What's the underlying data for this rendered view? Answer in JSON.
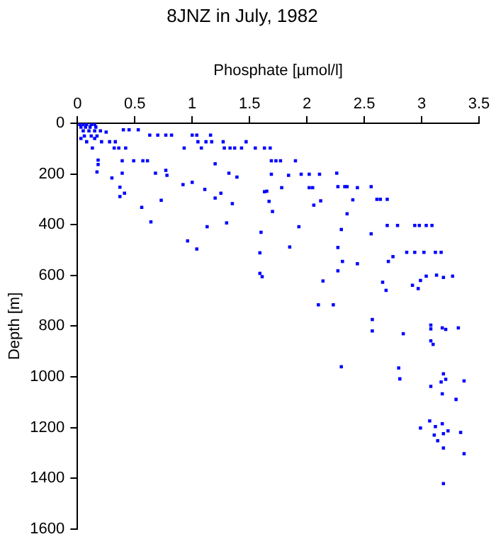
{
  "chart_data": {
    "type": "scatter",
    "title": "8JNZ in July, 1982",
    "xlabel": "Phosphate [µmol/l]",
    "ylabel": "Depth [m]",
    "xlim": [
      0,
      3.5
    ],
    "xticks": [
      0,
      0.5,
      1,
      1.5,
      2,
      2.5,
      3,
      3.5
    ],
    "ylim": [
      1600,
      0
    ],
    "yticks": [
      0,
      200,
      400,
      600,
      800,
      1000,
      1200,
      1400,
      1600
    ],
    "grid": false,
    "marker": "square",
    "series": [
      {
        "color": "#0000ff",
        "x": [
          0.02,
          0.05,
          0.08,
          0.12,
          0.15,
          0.03,
          0.07,
          0.11,
          0.16,
          0.05,
          0.1,
          0.15,
          0.2,
          0.25,
          0.06,
          0.12,
          0.17,
          0.03,
          0.15,
          0.4,
          0.45,
          0.53,
          0.63,
          0.7,
          0.77,
          0.82,
          1.0,
          1.04,
          1.16,
          0.08,
          0.21,
          0.28,
          0.33,
          1.05,
          1.12,
          1.17,
          1.27,
          1.47,
          0.13,
          0.32,
          0.36,
          0.42,
          0.93,
          1.08,
          1.28,
          1.33,
          1.37,
          1.43,
          1.55,
          1.63,
          1.68,
          0.39,
          0.49,
          0.57,
          0.61,
          1.69,
          1.73,
          1.77,
          1.9,
          0.18,
          0.18,
          0.17,
          0.3,
          0.39,
          0.37,
          0.37,
          0.41,
          0.56,
          0.64,
          0.68,
          0.73,
          0.77,
          0.78,
          0.92,
          1.0,
          0.96,
          1.04,
          1.11,
          1.13,
          1.2,
          1.2,
          1.25,
          1.3,
          1.32,
          1.35,
          1.39,
          1.6,
          1.59,
          1.59,
          1.61,
          1.63,
          1.65,
          1.67,
          1.69,
          1.7,
          1.78,
          1.84,
          1.85,
          1.93,
          1.95,
          2.02,
          2.05,
          2.02,
          2.11,
          2.06,
          2.12,
          2.26,
          2.27,
          2.33,
          2.35,
          2.44,
          2.56,
          2.4,
          2.35,
          2.3,
          2.56,
          2.61,
          2.64,
          2.7,
          2.7,
          2.79,
          2.94,
          2.98,
          3.04,
          3.09,
          2.27,
          2.31,
          2.44,
          2.27,
          2.14,
          2.1,
          2.23,
          2.66,
          2.69,
          2.71,
          2.75,
          2.87,
          2.94,
          3.02,
          3.12,
          3.17,
          2.92,
          2.97,
          2.99,
          3.04,
          3.13,
          3.19,
          3.27,
          2.57,
          2.57,
          2.84,
          3.08,
          3.08,
          3.18,
          3.21,
          3.32,
          3.08,
          3.1,
          2.3,
          2.8,
          2.81,
          3.19,
          3.21,
          3.17,
          3.08,
          3.37,
          3.18,
          3.3,
          3.07,
          3.12,
          2.99,
          3.18,
          3.23,
          3.11,
          3.19,
          3.14,
          3.34,
          3.19,
          3.37,
          3.19
        ],
        "values": [
          5,
          5,
          5,
          5,
          5,
          15,
          15,
          15,
          15,
          30,
          30,
          30,
          30,
          35,
          50,
          50,
          50,
          60,
          60,
          26,
          26,
          26,
          47,
          47,
          47,
          47,
          47,
          47,
          47,
          73,
          73,
          73,
          73,
          73,
          73,
          73,
          73,
          73,
          98,
          98,
          98,
          98,
          98,
          98,
          98,
          98,
          98,
          98,
          98,
          98,
          98,
          148,
          148,
          148,
          148,
          148,
          148,
          148,
          148,
          145,
          163,
          192,
          216,
          197,
          252,
          289,
          276,
          332,
          389,
          197,
          304,
          186,
          205,
          242,
          233,
          464,
          496,
          261,
          408,
          160,
          295,
          276,
          393,
          197,
          317,
          212,
          430,
          511,
          592,
          605,
          270,
          268,
          308,
          201,
          348,
          254,
          205,
          488,
          408,
          201,
          201,
          254,
          254,
          201,
          323,
          306,
          197,
          250,
          250,
          250,
          254,
          250,
          302,
          357,
          419,
          436,
          300,
          300,
          300,
          403,
          403,
          403,
          403,
          403,
          403,
          490,
          545,
          554,
          582,
          622,
          716,
          716,
          627,
          659,
          545,
          526,
          509,
          509,
          509,
          509,
          509,
          639,
          652,
          620,
          603,
          599,
          608,
          603,
          774,
          819,
          830,
          796,
          811,
          807,
          813,
          807,
          858,
          872,
          960,
          965,
          1008,
          988,
          1010,
          1020,
          1038,
          1016,
          1067,
          1089,
          1174,
          1196,
          1202,
          1185,
          1213,
          1230,
          1224,
          1252,
          1219,
          1281,
          1303,
          1421
        ]
      }
    ]
  }
}
